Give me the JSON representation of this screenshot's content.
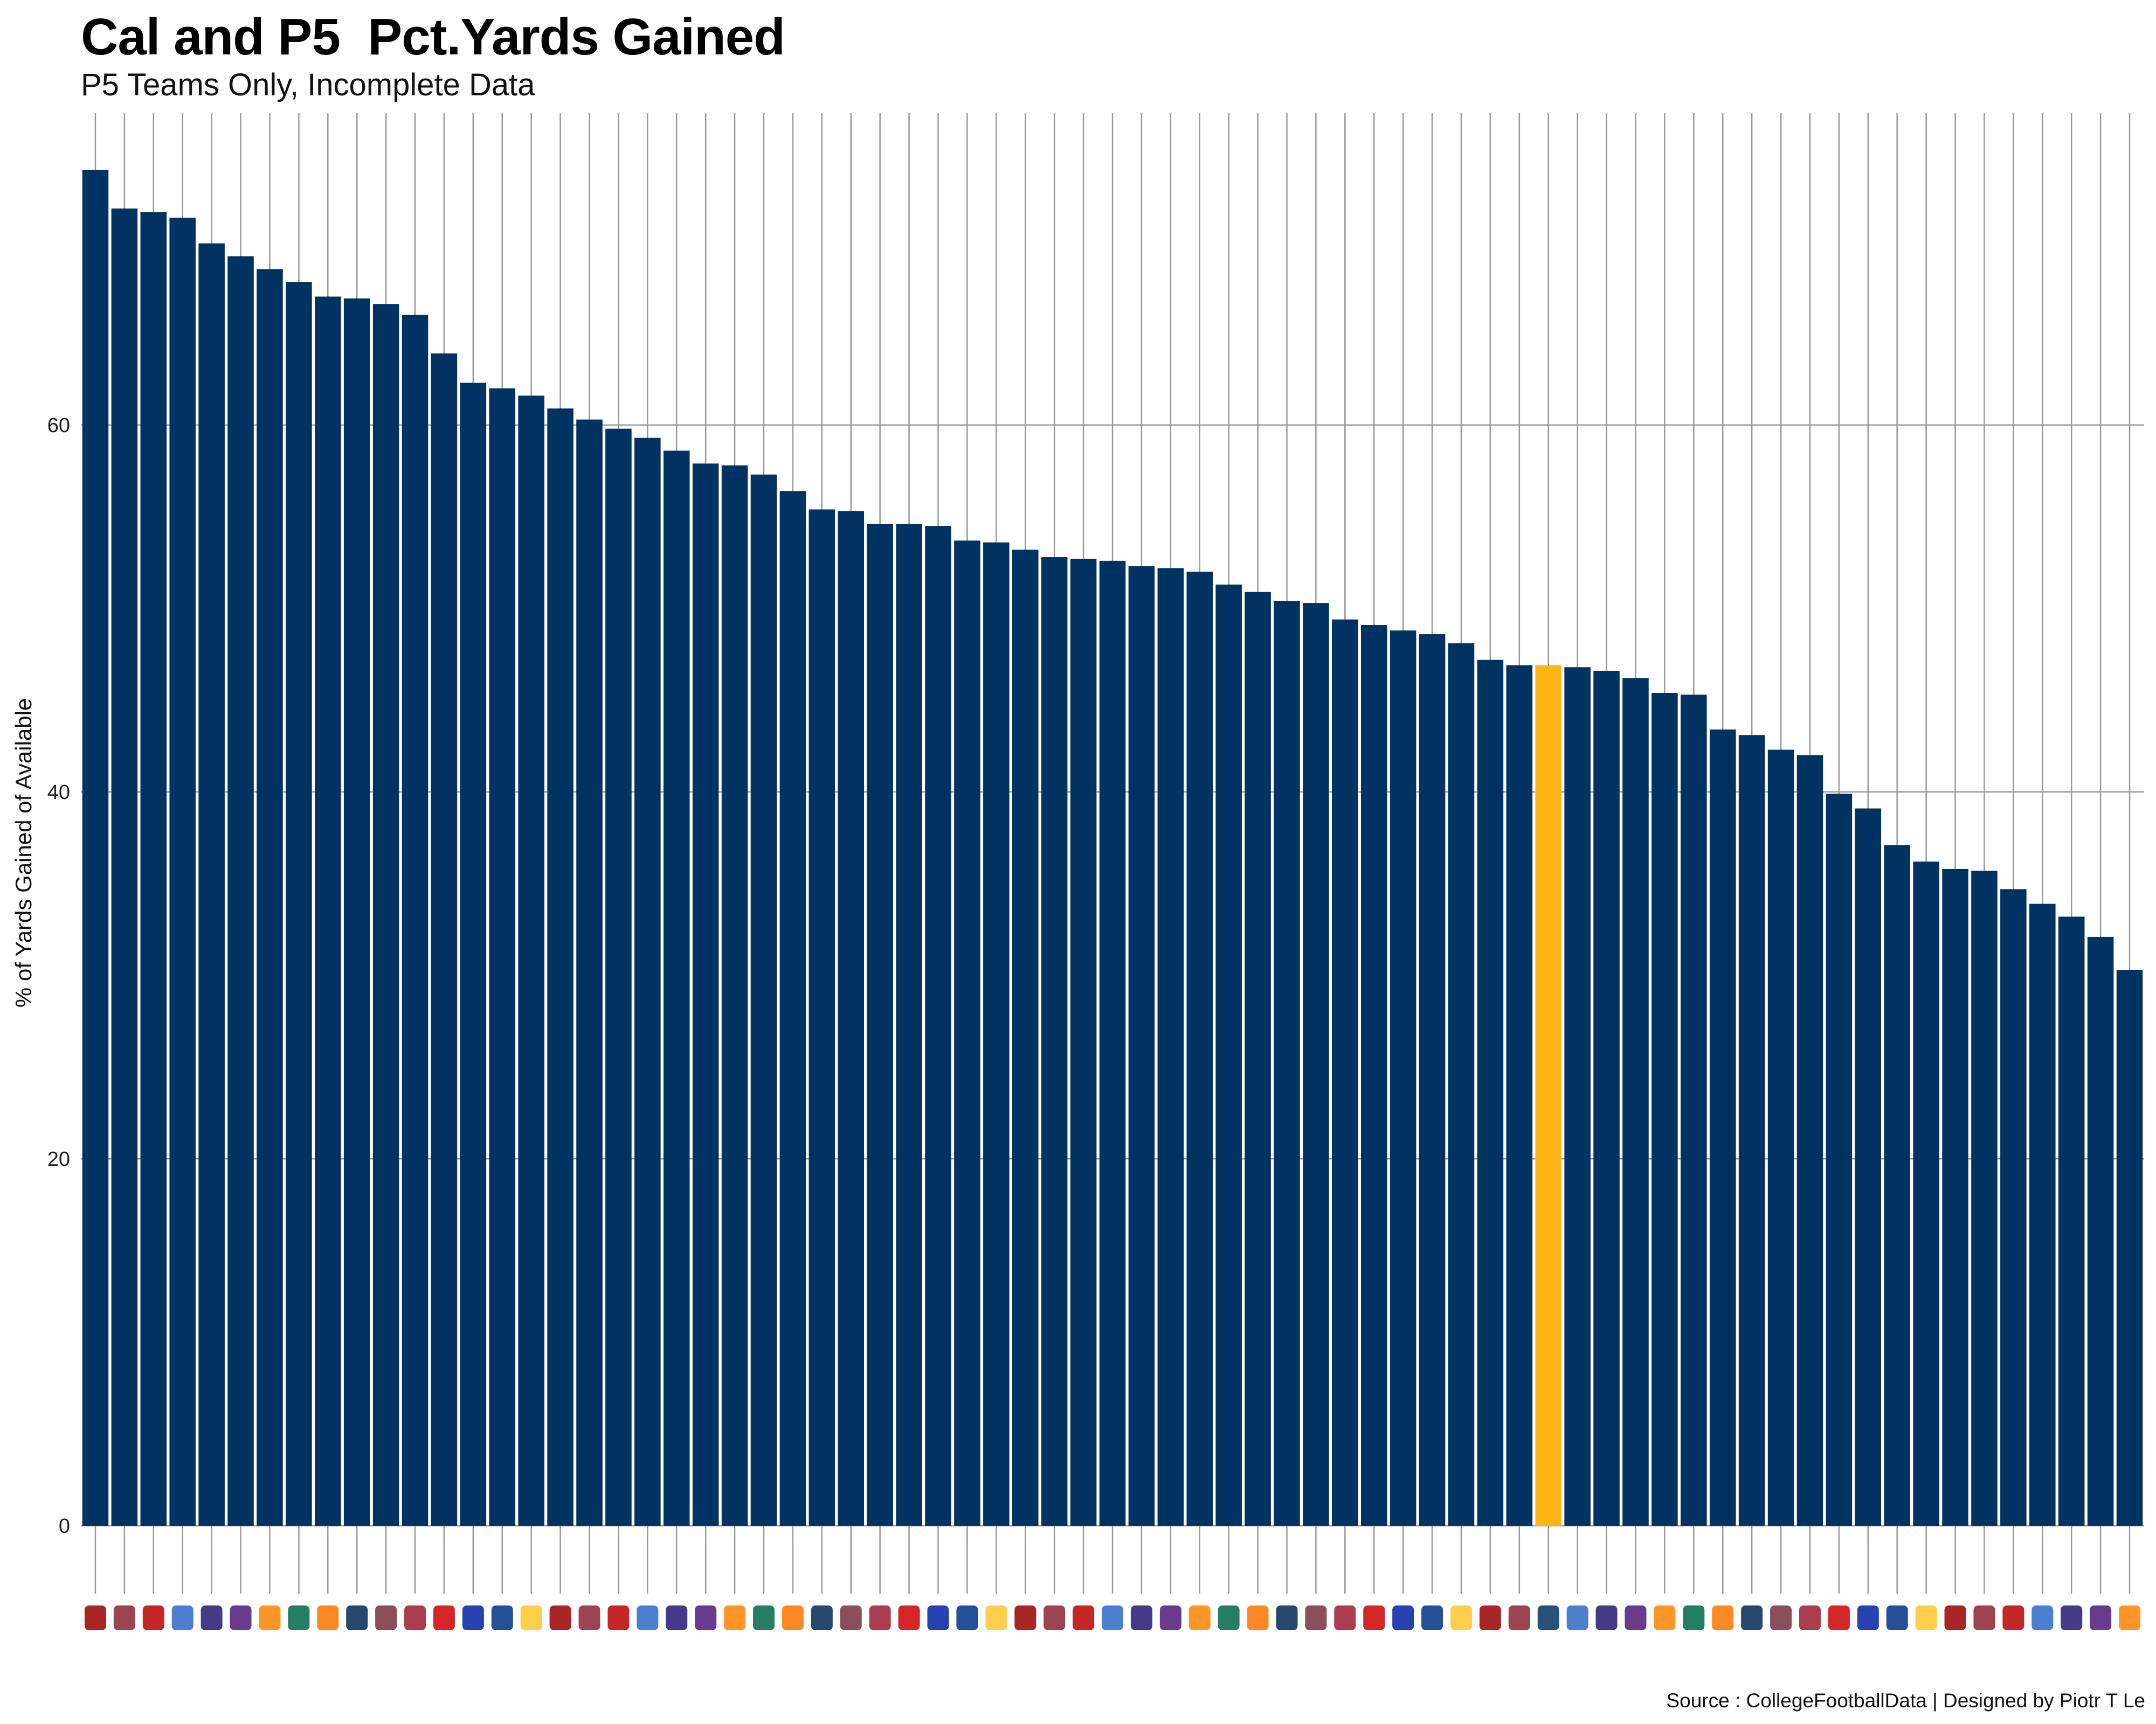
{
  "title": "Cal and P5  Pct.Yards Gained",
  "subtitle": "P5 Teams Only, Incomplete Data",
  "source": "Source : CollegeFootballData | Designed by Piotr T Le",
  "colors": {
    "bar": "#003262",
    "highlight": "#FDB515",
    "grid": "#999999"
  },
  "chart_data": {
    "type": "bar",
    "ylabel": "% of Yards Gained of Available",
    "ylim": [
      -3.7,
      77
    ],
    "yticks": [
      0,
      20,
      40,
      60
    ],
    "grid": true,
    "highlight_index": 50,
    "categories": [
      "",
      "",
      "",
      "",
      "",
      "",
      "",
      "",
      "",
      "",
      "",
      "",
      "",
      "",
      "",
      "",
      "",
      "",
      "",
      "",
      "",
      "",
      "",
      "",
      "",
      "",
      "",
      "",
      "",
      "",
      "",
      "",
      "",
      "",
      "",
      "",
      "",
      "",
      "",
      "",
      "",
      "",
      "",
      "",
      "",
      "",
      "",
      "",
      "",
      "",
      "",
      "",
      "",
      "",
      "",
      "",
      "",
      "",
      "",
      "",
      "",
      "",
      "",
      "",
      "",
      "",
      "",
      "",
      "",
      "",
      ""
    ],
    "values": [
      73.9,
      71.8,
      71.6,
      71.3,
      69.9,
      69.2,
      68.5,
      67.8,
      67.0,
      66.9,
      66.6,
      66.0,
      63.9,
      62.3,
      62.0,
      61.6,
      60.9,
      60.3,
      59.8,
      59.3,
      58.6,
      57.9,
      57.8,
      57.3,
      56.4,
      55.4,
      55.3,
      54.6,
      54.6,
      54.5,
      53.7,
      53.6,
      53.2,
      52.8,
      52.7,
      52.6,
      52.3,
      52.2,
      52.0,
      51.3,
      50.9,
      50.4,
      50.3,
      49.4,
      49.1,
      48.8,
      48.6,
      48.1,
      47.2,
      46.9,
      46.9,
      46.8,
      46.6,
      46.2,
      45.4,
      45.3,
      43.4,
      43.1,
      42.3,
      42.0,
      39.9,
      39.1,
      37.1,
      36.2,
      35.8,
      35.7,
      34.7,
      33.9,
      33.2,
      32.1,
      30.3
    ]
  }
}
